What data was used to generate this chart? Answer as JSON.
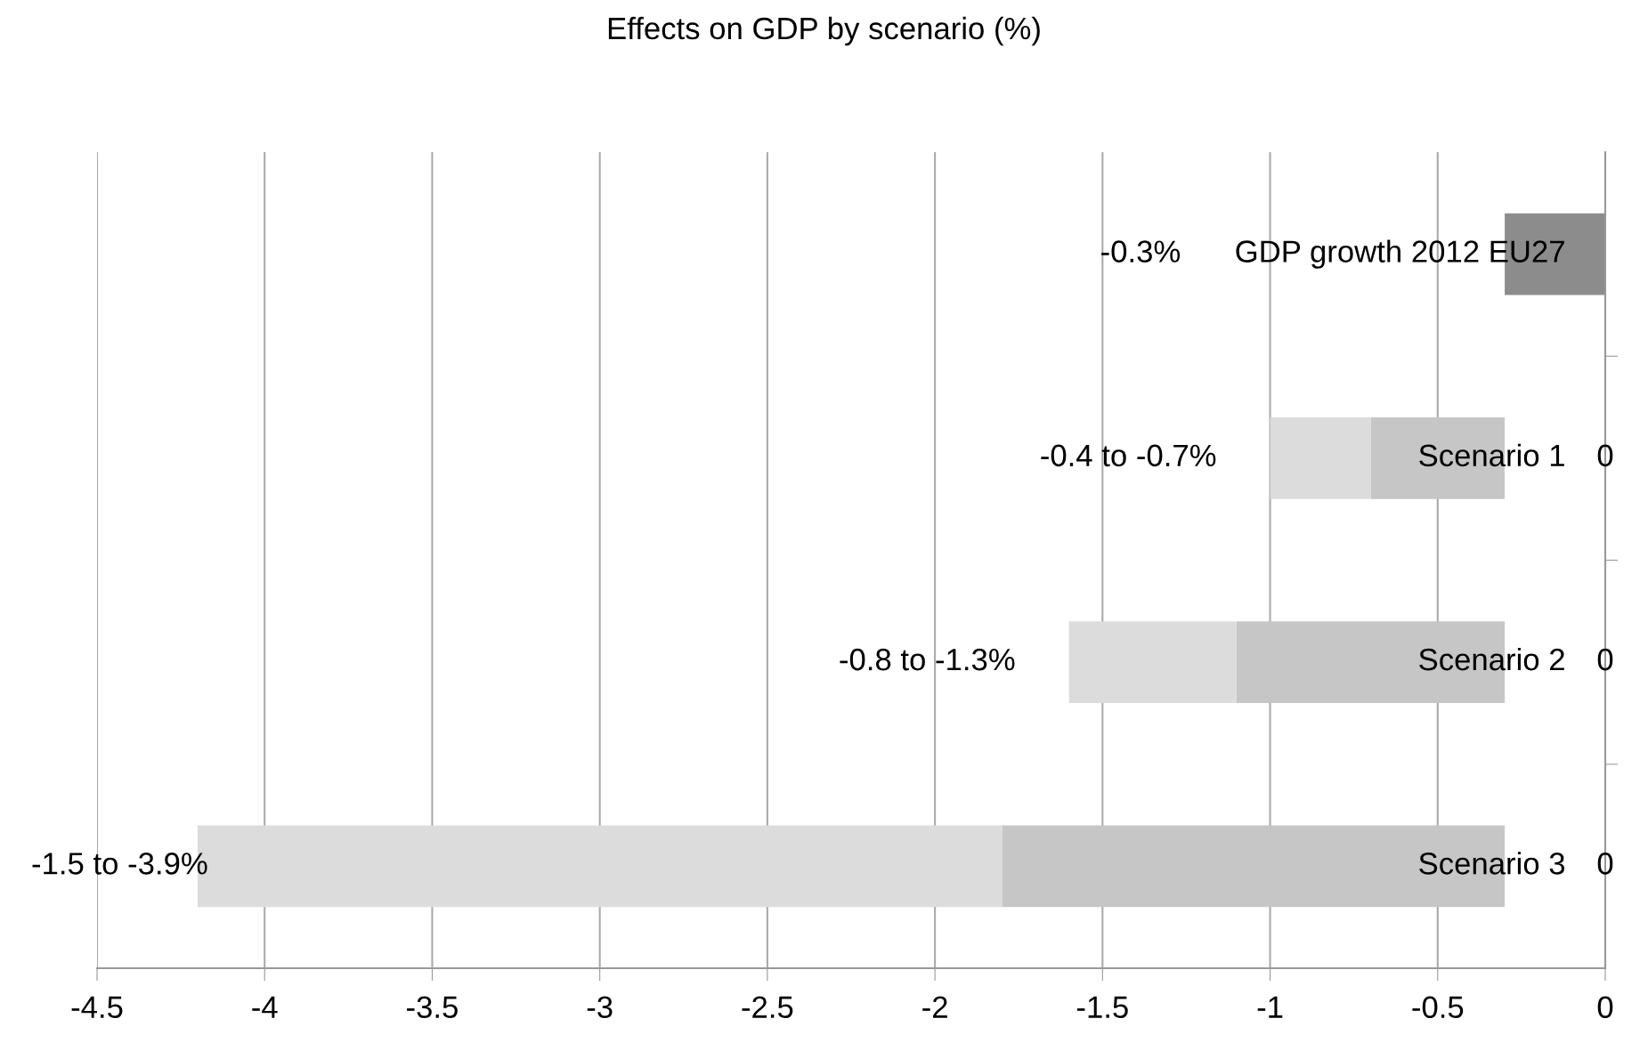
{
  "chart_data": {
    "type": "bar",
    "orientation": "horizontal",
    "title": "Effects on GDP by scenario (%)",
    "categories": [
      "GDP growth 2012 EU27",
      "Scenario 1",
      "Scenario 2",
      "Scenario 3"
    ],
    "series": [
      {
        "color": "#8c8c8c",
        "values": [
          -0.3,
          0,
          0,
          0
        ],
        "value_labels": [
          null,
          "0",
          "0",
          "0"
        ]
      },
      {
        "color": "#c6c6c6",
        "base": [
          null,
          -0.3,
          -0.3,
          -0.3
        ],
        "values": [
          null,
          -0.4,
          -0.8,
          -1.5
        ]
      },
      {
        "color": "#dcdcdc",
        "base": [
          null,
          -0.7,
          -1.1,
          -1.8
        ],
        "values": [
          null,
          -0.3,
          -0.5,
          -2.4
        ]
      }
    ],
    "annotations": [
      "-0.3%",
      "-0.4 to -0.7%",
      "-0.8 to -1.3%",
      "-1.5 to -3.9%"
    ],
    "xlim": [
      -4.5,
      0
    ],
    "xticks": [
      -4.5,
      -4,
      -3.5,
      -3,
      -2.5,
      -2,
      -1.5,
      -1,
      -0.5,
      0
    ],
    "grid": "x",
    "legend": false
  }
}
